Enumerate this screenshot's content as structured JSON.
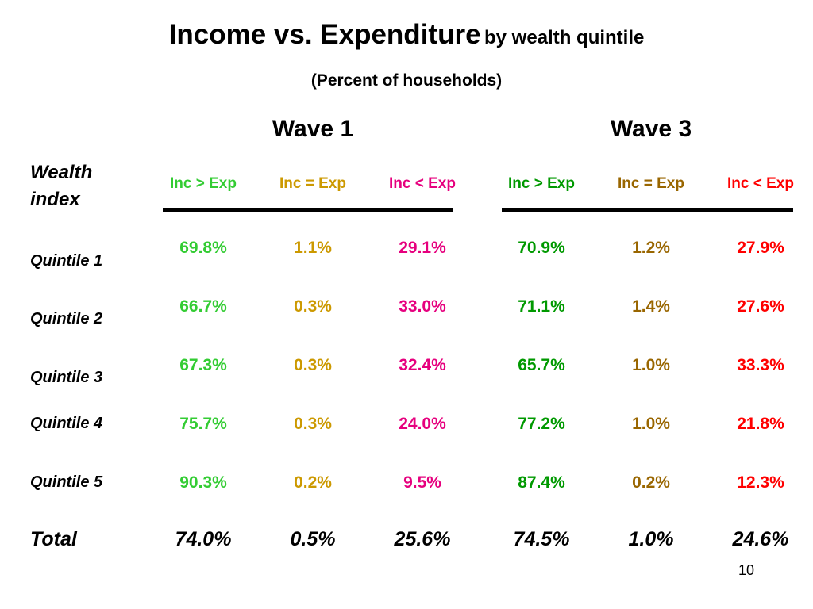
{
  "title": {
    "main": "Income vs. Expenditure",
    "sub": "by wealth quintile"
  },
  "subtitle": "(Percent of households)",
  "waves": [
    {
      "label": "Wave 1"
    },
    {
      "label": "Wave 3"
    }
  ],
  "row_header": {
    "line1": "Wealth",
    "line2": "index"
  },
  "column_headers": [
    "Inc > Exp",
    "Inc = Exp",
    "Inc < Exp",
    "Inc > Exp",
    "Inc = Exp",
    "Inc < Exp"
  ],
  "rows": [
    {
      "label": "Quintile 1",
      "values": [
        "69.8%",
        "1.1%",
        "29.1%",
        "70.9%",
        "1.2%",
        "27.9%"
      ]
    },
    {
      "label": "Quintile 2",
      "values": [
        "66.7%",
        "0.3%",
        "33.0%",
        "71.1%",
        "1.4%",
        "27.6%"
      ]
    },
    {
      "label": "Quintile 3",
      "values": [
        "67.3%",
        "0.3%",
        "32.4%",
        "65.7%",
        "1.0%",
        "33.3%"
      ]
    },
    {
      "label": "Quintile 4",
      "values": [
        "75.7%",
        "0.3%",
        "24.0%",
        "77.2%",
        "1.0%",
        "21.8%"
      ]
    },
    {
      "label": "Quintile 5",
      "values": [
        "90.3%",
        "0.2%",
        "9.5%",
        "87.4%",
        "0.2%",
        "12.3%"
      ]
    }
  ],
  "total": {
    "label": "Total",
    "values": [
      "74.0%",
      "0.5%",
      "25.6%",
      "74.5%",
      "1.0%",
      "24.6%"
    ]
  },
  "page_number": "10",
  "colors": {
    "wave1_inc_gt_exp": "#33cc33",
    "wave1_inc_eq_exp": "#cc9900",
    "wave1_inc_lt_exp": "#e6007e",
    "wave3_inc_gt_exp": "#009900",
    "wave3_inc_eq_exp": "#996600",
    "wave3_inc_lt_exp": "#ff0000",
    "text": "#000000",
    "background": "#ffffff"
  }
}
